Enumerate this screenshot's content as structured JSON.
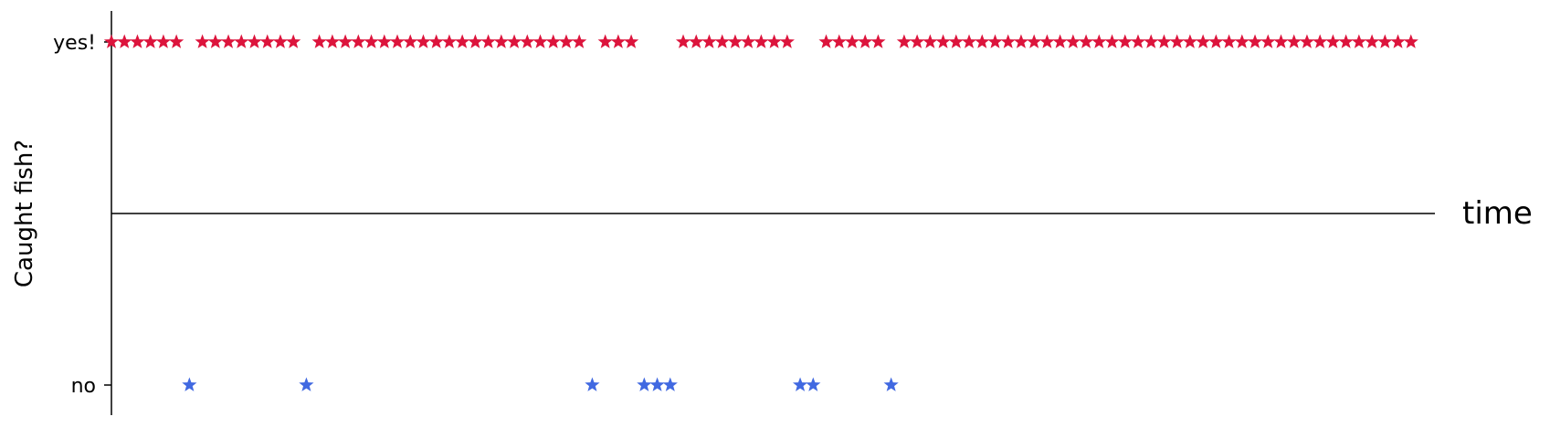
{
  "chart_data": {
    "type": "scatter",
    "title": "",
    "xlabel": "time",
    "ylabel": "Caught fish?",
    "y_categories": [
      "no",
      "yes!"
    ],
    "grid": false,
    "legend": "none",
    "colors": {
      "yes": "#DC143C",
      "no": "#4169E1",
      "axis": "#000000"
    },
    "marker": "star",
    "xlim": [
      0,
      101
    ],
    "series": [
      {
        "category": "yes!",
        "x": [
          0,
          1,
          2,
          3,
          4,
          5,
          7,
          8,
          9,
          10,
          11,
          12,
          13,
          14,
          16,
          17,
          18,
          19,
          20,
          21,
          22,
          23,
          24,
          25,
          26,
          27,
          28,
          29,
          30,
          31,
          32,
          33,
          34,
          35,
          36,
          38,
          39,
          40,
          44,
          45,
          46,
          47,
          48,
          49,
          50,
          51,
          52,
          55,
          56,
          57,
          58,
          59,
          61,
          62,
          63,
          64,
          65,
          66,
          67,
          68,
          69,
          70,
          71,
          72,
          73,
          74,
          75,
          76,
          77,
          78,
          79,
          80,
          81,
          82,
          83,
          84,
          85,
          86,
          87,
          88,
          89,
          90,
          91,
          92,
          93,
          94,
          95,
          96,
          97,
          98,
          99,
          100
        ]
      },
      {
        "category": "no",
        "x": [
          6,
          15,
          37,
          41,
          42,
          43,
          53,
          54,
          60
        ]
      }
    ]
  }
}
